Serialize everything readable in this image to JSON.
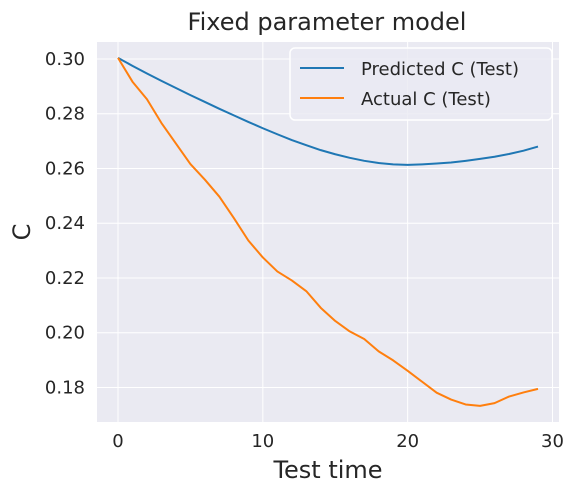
{
  "chart_data": {
    "type": "line",
    "title": "Fixed parameter model",
    "xlabel": "Test time",
    "ylabel": "C",
    "xlim": [
      -1.45,
      30.45
    ],
    "ylim": [
      0.1674,
      0.3062
    ],
    "xticks": [
      0,
      10,
      20,
      30
    ],
    "yticks": [
      0.18,
      0.2,
      0.22,
      0.24,
      0.26,
      0.28,
      0.3
    ],
    "xtick_labels": [
      "0",
      "10",
      "20",
      "30"
    ],
    "ytick_labels": [
      "0.18",
      "0.20",
      "0.22",
      "0.24",
      "0.26",
      "0.28",
      "0.30"
    ],
    "grid": true,
    "legend_position": "top-right",
    "series": [
      {
        "name": "Predicted C (Test)",
        "color": "#1f77b4",
        "x": [
          0,
          1,
          2,
          3,
          4,
          5,
          6,
          7,
          8,
          9,
          10,
          11,
          12,
          13,
          14,
          15,
          16,
          17,
          18,
          19,
          20,
          21,
          22,
          23,
          24,
          25,
          26,
          27,
          28,
          29
        ],
        "y": [
          0.3004,
          0.2975,
          0.2947,
          0.292,
          0.2894,
          0.2868,
          0.2843,
          0.2818,
          0.2794,
          0.277,
          0.2747,
          0.2725,
          0.2704,
          0.2685,
          0.2667,
          0.2652,
          0.2639,
          0.2628,
          0.262,
          0.2615,
          0.2613,
          0.2615,
          0.2618,
          0.2622,
          0.2628,
          0.2635,
          0.2643,
          0.2653,
          0.2665,
          0.268
        ]
      },
      {
        "name": "Actual C (Test)",
        "color": "#ff7f0e",
        "x": [
          0,
          1,
          2,
          3,
          4,
          5,
          6,
          7,
          8,
          9,
          10,
          11,
          12,
          13,
          14,
          15,
          16,
          17,
          18,
          19,
          20,
          21,
          22,
          23,
          24,
          25,
          26,
          27,
          28,
          29
        ],
        "y": [
          0.3004,
          0.2917,
          0.2853,
          0.2766,
          0.2691,
          0.2616,
          0.2559,
          0.2497,
          0.2419,
          0.2337,
          0.2275,
          0.2224,
          0.2191,
          0.2152,
          0.2091,
          0.2043,
          0.2005,
          0.1977,
          0.1932,
          0.1899,
          0.1861,
          0.1821,
          0.1781,
          0.1756,
          0.1738,
          0.1733,
          0.1743,
          0.1767,
          0.1782,
          0.1795
        ]
      }
    ]
  }
}
